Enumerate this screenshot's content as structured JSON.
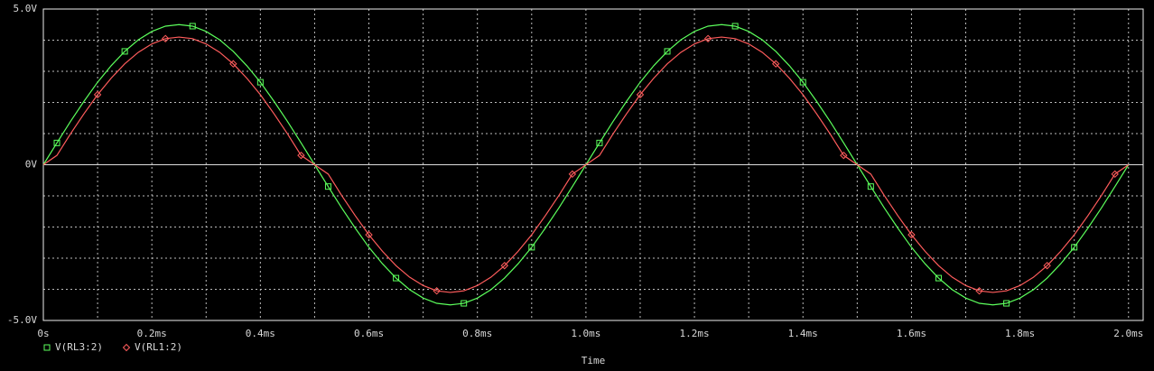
{
  "chart_data": {
    "type": "line",
    "x_label": "Time",
    "x": [
      0,
      0.025,
      0.05,
      0.075,
      0.1,
      0.125,
      0.15,
      0.175,
      0.2,
      0.225,
      0.25,
      0.275,
      0.3,
      0.325,
      0.35,
      0.375,
      0.4,
      0.425,
      0.45,
      0.475,
      0.5,
      0.525,
      0.55,
      0.575,
      0.6,
      0.625,
      0.65,
      0.675,
      0.7,
      0.725,
      0.75,
      0.775,
      0.8,
      0.825,
      0.85,
      0.875,
      0.9,
      0.925,
      0.95,
      0.975,
      1.0,
      1.025,
      1.05,
      1.075,
      1.1,
      1.125,
      1.15,
      1.175,
      1.2,
      1.225,
      1.25,
      1.275,
      1.3,
      1.325,
      1.35,
      1.375,
      1.4,
      1.425,
      1.45,
      1.475,
      1.5,
      1.525,
      1.55,
      1.575,
      1.6,
      1.625,
      1.65,
      1.675,
      1.7,
      1.725,
      1.75,
      1.775,
      1.8,
      1.825,
      1.85,
      1.875,
      1.9,
      1.925,
      1.95,
      1.975,
      2.0
    ],
    "series": [
      {
        "name": "V(RL3:2)",
        "color": "#5cff5c",
        "marker": "square",
        "values": [
          0,
          0.7,
          1.39,
          2.04,
          2.65,
          3.18,
          3.64,
          4.01,
          4.28,
          4.45,
          4.5,
          4.45,
          4.28,
          4.01,
          3.64,
          3.18,
          2.65,
          2.04,
          1.39,
          0.7,
          0,
          -0.7,
          -1.39,
          -2.04,
          -2.65,
          -3.18,
          -3.64,
          -4.01,
          -4.28,
          -4.45,
          -4.5,
          -4.45,
          -4.28,
          -4.01,
          -3.64,
          -3.18,
          -2.65,
          -2.04,
          -1.39,
          -0.7,
          0,
          0.7,
          1.39,
          2.04,
          2.65,
          3.18,
          3.64,
          4.01,
          4.28,
          4.45,
          4.5,
          4.45,
          4.28,
          4.01,
          3.64,
          3.18,
          2.65,
          2.04,
          1.39,
          0.7,
          0,
          -0.7,
          -1.39,
          -2.04,
          -2.65,
          -3.18,
          -3.64,
          -4.01,
          -4.28,
          -4.45,
          -4.5,
          -4.45,
          -4.28,
          -4.01,
          -3.64,
          -3.18,
          -2.65,
          -2.04,
          -1.39,
          -0.7,
          0
        ]
      },
      {
        "name": "V(RL1:2)",
        "color": "#ff5c5c",
        "marker": "diamond",
        "values": [
          0,
          0.3,
          0.99,
          1.64,
          2.25,
          2.78,
          3.24,
          3.61,
          3.88,
          4.05,
          4.1,
          4.05,
          3.88,
          3.61,
          3.24,
          2.78,
          2.25,
          1.64,
          0.99,
          0.3,
          0,
          -0.3,
          -0.99,
          -1.64,
          -2.25,
          -2.78,
          -3.24,
          -3.61,
          -3.88,
          -4.05,
          -4.1,
          -4.05,
          -3.88,
          -3.61,
          -3.24,
          -2.78,
          -2.25,
          -1.64,
          -0.99,
          -0.3,
          0,
          0.3,
          0.99,
          1.64,
          2.25,
          2.78,
          3.24,
          3.61,
          3.88,
          4.05,
          4.1,
          4.05,
          3.88,
          3.61,
          3.24,
          2.78,
          2.25,
          1.64,
          0.99,
          0.3,
          0,
          -0.3,
          -0.99,
          -1.64,
          -2.25,
          -2.78,
          -3.24,
          -3.61,
          -3.88,
          -4.05,
          -4.1,
          -4.05,
          -3.88,
          -3.61,
          -3.24,
          -2.78,
          -2.25,
          -1.64,
          -0.99,
          -0.3,
          0
        ]
      }
    ],
    "xlim": [
      0,
      2.027
    ],
    "xticks": [
      {
        "value": 0,
        "label": "0s"
      },
      {
        "value": 0.2,
        "label": "0.2ms"
      },
      {
        "value": 0.4,
        "label": "0.4ms"
      },
      {
        "value": 0.6,
        "label": "0.6ms"
      },
      {
        "value": 0.8,
        "label": "0.8ms"
      },
      {
        "value": 1.0,
        "label": "1.0ms"
      },
      {
        "value": 1.2,
        "label": "1.2ms"
      },
      {
        "value": 1.4,
        "label": "1.4ms"
      },
      {
        "value": 1.6,
        "label": "1.6ms"
      },
      {
        "value": 1.8,
        "label": "1.8ms"
      },
      {
        "value": 2.0,
        "label": "2.0ms"
      }
    ],
    "x_minor_ticks": [
      0.1,
      0.3,
      0.5,
      0.7,
      0.9,
      1.1,
      1.3,
      1.5,
      1.7,
      1.9
    ],
    "ylim": [
      -5,
      5
    ],
    "yticks": [
      {
        "value": -5,
        "label": "-5.0V"
      },
      {
        "value": 0,
        "label": "0V"
      },
      {
        "value": 5,
        "label": "5.0V"
      }
    ],
    "y_minor_ticks": [
      -4,
      -3,
      -2,
      -1,
      1,
      2,
      3,
      4
    ],
    "grid": true
  }
}
